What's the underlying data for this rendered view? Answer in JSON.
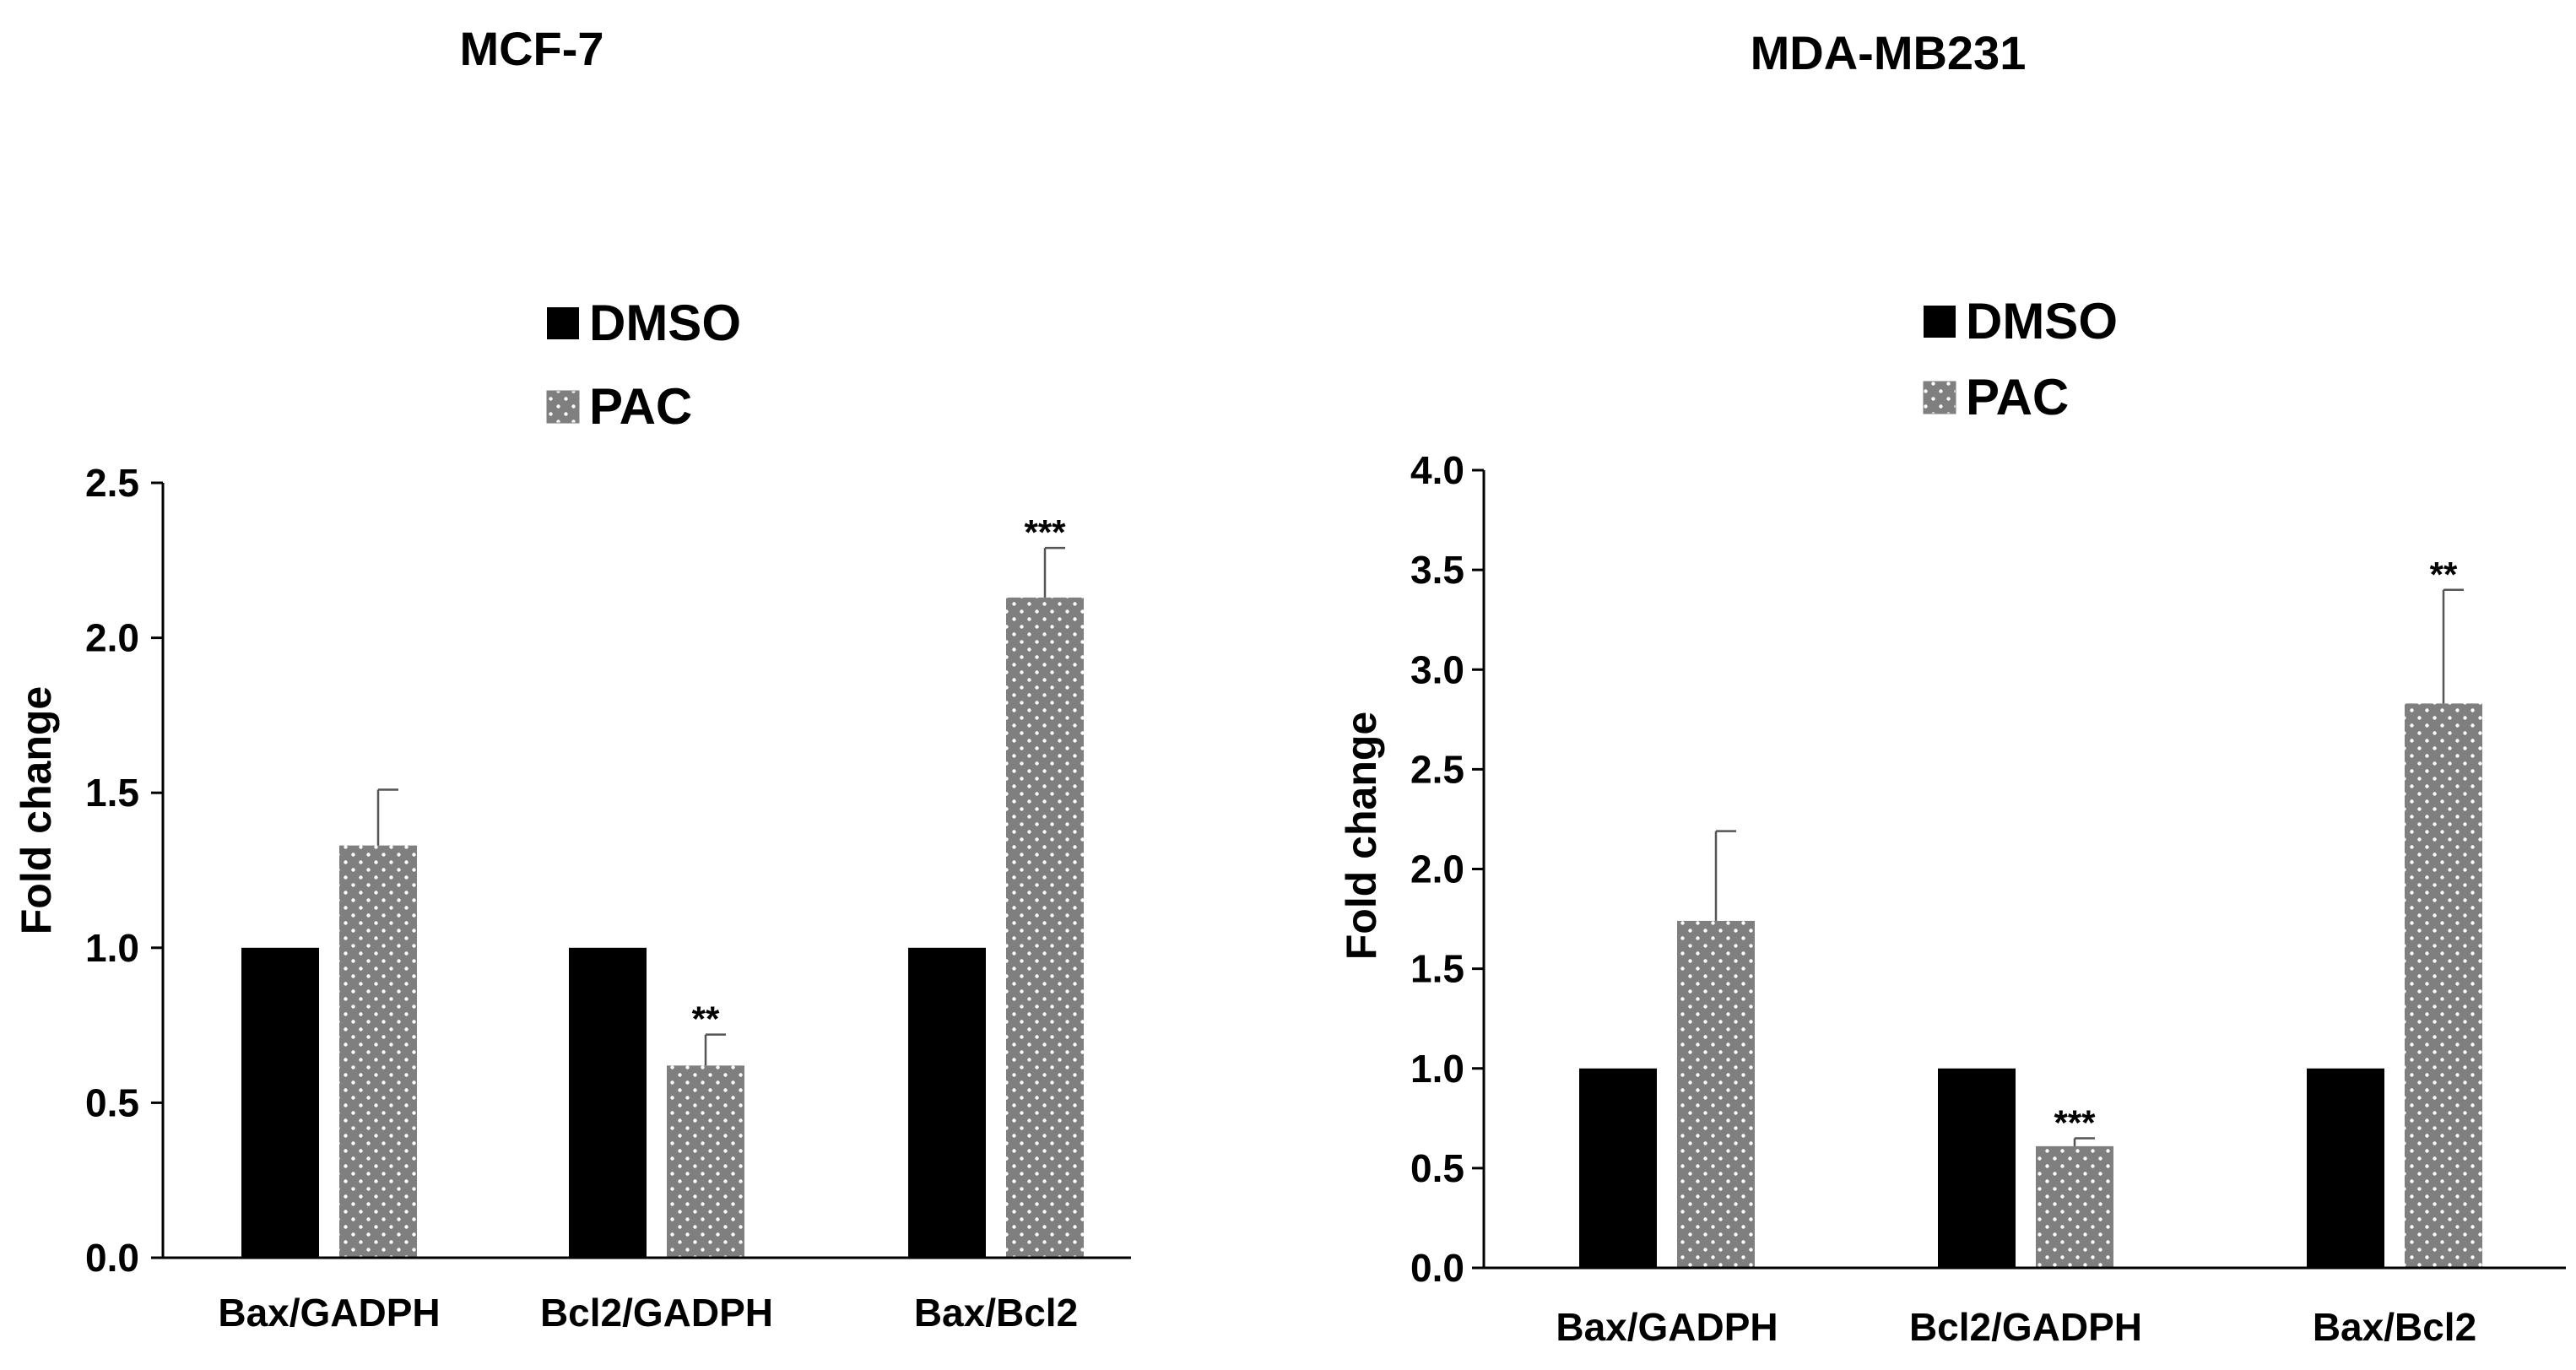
{
  "chart_data": [
    {
      "type": "bar",
      "title": "MCF-7",
      "ylabel": "Fold change",
      "xlabel": "",
      "ylim": [
        0,
        2.5
      ],
      "yticks": [
        "0.0",
        "0.5",
        "1.0",
        "1.5",
        "2.0",
        "2.5"
      ],
      "categories": [
        "Bax/GADPH",
        "Bcl2/GADPH",
        "Bax/Bcl2"
      ],
      "legend_position": "top-center",
      "series": [
        {
          "name": "DMSO",
          "color": "#000000",
          "pattern": "solid",
          "values": [
            1.0,
            1.0,
            1.0
          ],
          "errors": [
            0,
            0,
            0
          ]
        },
        {
          "name": "PAC",
          "color": "#7f7f7f",
          "pattern": "dotted",
          "values": [
            1.33,
            0.62,
            2.13
          ],
          "errors": [
            0.18,
            0.1,
            0.16
          ]
        }
      ],
      "significance": [
        {
          "category": "Bcl2/GADPH",
          "series": "PAC",
          "label": "**"
        },
        {
          "category": "Bax/Bcl2",
          "series": "PAC",
          "label": "***"
        }
      ]
    },
    {
      "type": "bar",
      "title": "MDA-MB231",
      "ylabel": "Fold change",
      "xlabel": "",
      "ylim": [
        0,
        4.0
      ],
      "yticks": [
        "0.0",
        "0.5",
        "1.0",
        "1.5",
        "2.0",
        "2.5",
        "3.0",
        "3.5",
        "4.0"
      ],
      "categories": [
        "Bax/GADPH",
        "Bcl2/GADPH",
        "Bax/Bcl2"
      ],
      "legend_position": "top-center",
      "series": [
        {
          "name": "DMSO",
          "color": "#000000",
          "pattern": "solid",
          "values": [
            1.0,
            1.0,
            1.0
          ],
          "errors": [
            0,
            0,
            0
          ]
        },
        {
          "name": "PAC",
          "color": "#7f7f7f",
          "pattern": "dotted",
          "values": [
            1.74,
            0.61,
            2.83
          ],
          "errors": [
            0.45,
            0.04,
            0.57
          ]
        }
      ],
      "significance": [
        {
          "category": "Bcl2/GADPH",
          "series": "PAC",
          "label": "***"
        },
        {
          "category": "Bax/Bcl2",
          "series": "PAC",
          "label": "**"
        }
      ]
    }
  ]
}
